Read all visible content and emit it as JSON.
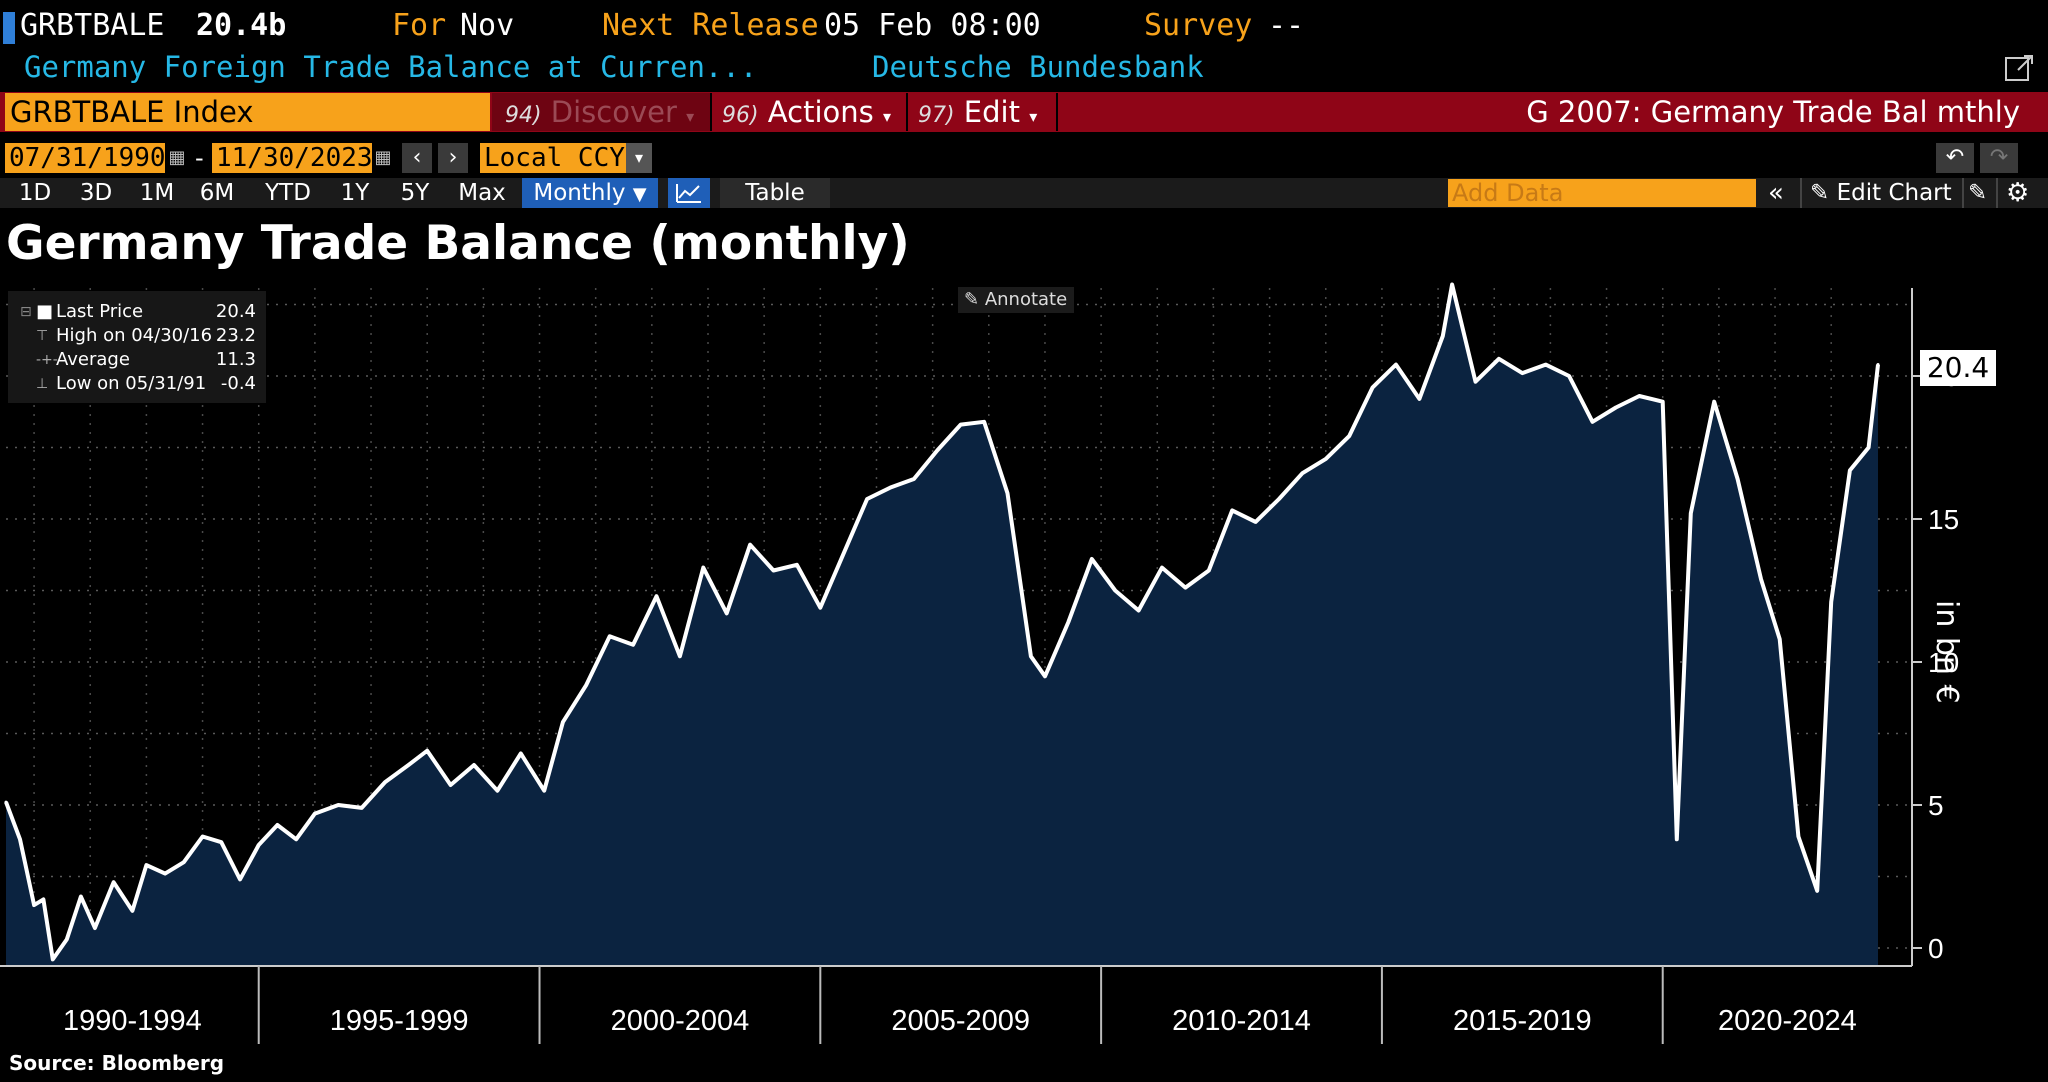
{
  "header": {
    "ticker": "GRBTBALE",
    "value": "20.4b",
    "for_label": "For",
    "for_value": "Nov",
    "next_release_label": "Next Release",
    "next_release_value": "05 Feb 08:00",
    "survey_label": "Survey",
    "survey_value": "--",
    "description": "Germany Foreign Trade Balance at Curren...",
    "source_org": "Deutsche Bundesbank"
  },
  "command_bar": {
    "index": "GRBTBALE Index",
    "discover_num": "94)",
    "discover": "Discover",
    "actions_num": "96)",
    "actions": "Actions",
    "edit_num": "97)",
    "edit": "Edit",
    "chart_name": "G 2007: Germany Trade Bal mthly"
  },
  "date_row": {
    "start": "07/31/1990",
    "dash": "-",
    "end": "11/30/2023",
    "currency": "Local CCY"
  },
  "periods": [
    "1D",
    "3D",
    "1M",
    "6M",
    "YTD",
    "1Y",
    "5Y",
    "Max"
  ],
  "frequency": "Monthly",
  "table_label": "Table",
  "add_data_placeholder": "Add Data",
  "edit_chart": "Edit Chart",
  "icons": {
    "undo": "undo-icon",
    "redo": "redo-icon",
    "calendar": "calendar-icon",
    "settings": "gear-icon",
    "pencil": "pencil-icon",
    "collapse": "double-chevron-left-icon",
    "line_chart": "line-chart-icon"
  },
  "legend": {
    "last_label": "Last Price",
    "last_value": "20.4",
    "high_label": "High on 04/30/16",
    "high_value": "23.2",
    "avg_label": "Average",
    "avg_value": "11.3",
    "low_label": "Low on 05/31/91",
    "low_value": "-0.4"
  },
  "annotate_label": "Annotate",
  "last_price_marker": "20.4",
  "source": "Source: Bloomberg",
  "colors": {
    "background": "#000000",
    "area_fill": "#0b2340",
    "line": "#ffffff",
    "accent_orange": "#f7a21b",
    "command_red": "#8f0517",
    "header_orange": "#f7a21b",
    "header_cyan": "#26b8e6",
    "active_blue": "#1f5fb8"
  },
  "chart_data": {
    "type": "area",
    "title": "Germany Trade Balance (monthly)",
    "ylabel": "in bn €",
    "xlabel": "",
    "ylim": [
      -0.8,
      23.2
    ],
    "yticks": [
      0,
      5,
      10,
      15,
      20
    ],
    "x_categories": [
      "1990-1994",
      "1995-1999",
      "2000-2004",
      "2005-2009",
      "2010-2014",
      "2015-2019",
      "2020-2024"
    ],
    "x_start": "1990-07",
    "x_end": "2023-11",
    "grid": true,
    "legend_position": "top-left",
    "series": [
      {
        "name": "Last Price",
        "x": [
          "1990-07",
          "1990-10",
          "1991-01",
          "1991-03",
          "1991-05",
          "1991-08",
          "1991-11",
          "1992-02",
          "1992-06",
          "1992-10",
          "1993-01",
          "1993-05",
          "1993-09",
          "1994-01",
          "1994-05",
          "1994-09",
          "1995-01",
          "1995-05",
          "1995-09",
          "1996-01",
          "1996-06",
          "1996-11",
          "1997-04",
          "1997-09",
          "1998-01",
          "1998-06",
          "1998-11",
          "1999-04",
          "1999-09",
          "2000-02",
          "2000-06",
          "2000-11",
          "2001-04",
          "2001-09",
          "2002-02",
          "2002-07",
          "2002-12",
          "2003-05",
          "2003-10",
          "2004-03",
          "2004-08",
          "2005-01",
          "2005-06",
          "2005-11",
          "2006-04",
          "2006-09",
          "2007-02",
          "2007-07",
          "2007-12",
          "2008-05",
          "2008-10",
          "2009-01",
          "2009-06",
          "2009-11",
          "2010-04",
          "2010-09",
          "2011-02",
          "2011-07",
          "2011-12",
          "2012-05",
          "2012-10",
          "2013-03",
          "2013-08",
          "2014-01",
          "2014-06",
          "2014-11",
          "2015-04",
          "2015-09",
          "2016-02",
          "2016-04",
          "2016-09",
          "2017-02",
          "2017-07",
          "2017-12",
          "2018-05",
          "2018-10",
          "2019-03",
          "2019-08",
          "2020-01",
          "2020-04",
          "2020-07",
          "2020-12",
          "2021-05",
          "2021-10",
          "2022-02",
          "2022-06",
          "2022-10",
          "2023-01",
          "2023-05",
          "2023-09",
          "2023-11"
        ],
        "values": [
          5.1,
          3.8,
          1.5,
          1.7,
          -0.4,
          0.3,
          1.8,
          0.7,
          2.3,
          1.3,
          2.9,
          2.6,
          3.0,
          3.9,
          3.7,
          2.4,
          3.6,
          4.3,
          3.8,
          4.7,
          5.0,
          4.9,
          5.8,
          6.4,
          6.9,
          5.7,
          6.4,
          5.5,
          6.8,
          5.5,
          7.9,
          9.2,
          10.9,
          10.6,
          12.3,
          10.2,
          13.3,
          11.7,
          14.1,
          13.2,
          13.4,
          11.9,
          13.8,
          15.7,
          16.1,
          16.4,
          17.4,
          18.3,
          18.4,
          15.9,
          10.2,
          9.5,
          11.4,
          13.6,
          12.5,
          11.8,
          13.3,
          12.6,
          13.2,
          15.3,
          14.9,
          15.7,
          16.6,
          17.1,
          17.9,
          19.6,
          20.4,
          19.2,
          21.4,
          23.2,
          19.8,
          20.6,
          20.1,
          20.4,
          20.0,
          18.4,
          18.9,
          19.3,
          19.1,
          3.8,
          15.2,
          19.1,
          16.4,
          12.9,
          10.8,
          3.9,
          2.0,
          12.1,
          16.7,
          17.5,
          20.4
        ]
      }
    ]
  }
}
